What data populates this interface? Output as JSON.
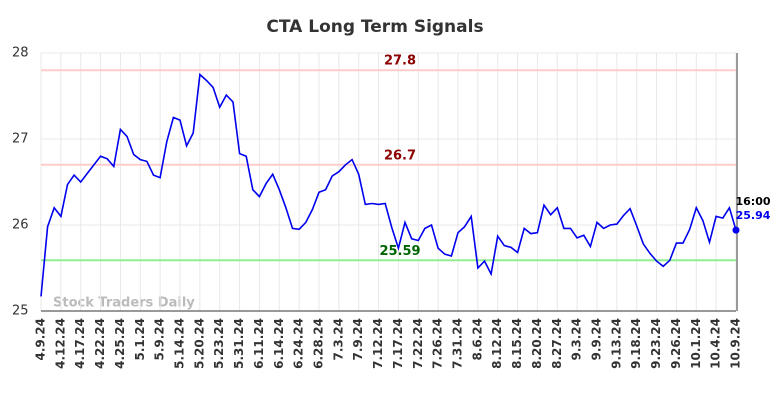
{
  "chart_data": {
    "type": "line",
    "title": "CTA Long Term Signals",
    "watermark": "Stock Traders Daily",
    "last_time": "16:00",
    "categories": [
      "4.9.24",
      null,
      null,
      "4.12.24",
      null,
      null,
      "4.17.24",
      null,
      null,
      "4.22.24",
      null,
      null,
      "4.25.24",
      null,
      null,
      "5.1.24",
      null,
      null,
      "5.9.24",
      null,
      null,
      "5.14.24",
      null,
      null,
      "5.20.24",
      null,
      null,
      "5.23.24",
      null,
      null,
      "5.31.24",
      null,
      null,
      "6.11.24",
      null,
      null,
      "6.14.24",
      null,
      null,
      "6.24.24",
      null,
      null,
      "6.28.24",
      null,
      null,
      "7.3.24",
      null,
      null,
      "7.9.24",
      null,
      null,
      "7.12.24",
      null,
      null,
      "7.17.24",
      null,
      null,
      "7.22.24",
      null,
      null,
      "7.26.24",
      null,
      null,
      "7.31.24",
      null,
      null,
      "8.6.24",
      null,
      null,
      "8.12.24",
      null,
      null,
      "8.15.24",
      null,
      null,
      "8.20.24",
      null,
      null,
      "8.27.24",
      null,
      null,
      "9.3.24",
      null,
      null,
      "9.9.24",
      null,
      null,
      "9.13.24",
      null,
      null,
      "9.18.24",
      null,
      null,
      "9.23.24",
      null,
      null,
      "9.26.24",
      null,
      null,
      "10.1.24",
      null,
      null,
      "10.4.24",
      null,
      null,
      "10.9.24"
    ],
    "series": [
      {
        "name": "CTA",
        "color": "#0000ee",
        "values": [
          25.17,
          25.98,
          26.2,
          26.1,
          26.47,
          26.58,
          26.5,
          26.6,
          26.7,
          26.8,
          26.77,
          26.68,
          27.11,
          27.03,
          26.82,
          26.76,
          26.74,
          26.58,
          26.55,
          26.97,
          27.25,
          27.22,
          26.92,
          27.07,
          27.75,
          27.68,
          27.6,
          27.37,
          27.51,
          27.43,
          26.83,
          26.8,
          26.41,
          26.33,
          26.48,
          26.59,
          26.41,
          26.2,
          25.96,
          25.95,
          26.03,
          26.18,
          26.38,
          26.41,
          26.57,
          26.62,
          26.7,
          26.76,
          26.59,
          26.24,
          26.25,
          26.24,
          26.25,
          25.97,
          25.73,
          26.03,
          25.84,
          25.82,
          25.96,
          26.0,
          25.73,
          25.66,
          25.64,
          25.91,
          25.98,
          26.1,
          25.5,
          25.58,
          25.43,
          25.87,
          25.76,
          25.74,
          25.68,
          25.96,
          25.9,
          25.91,
          26.23,
          26.12,
          26.2,
          25.96,
          25.96,
          25.85,
          25.88,
          25.75,
          26.03,
          25.96,
          26.0,
          26.01,
          26.11,
          26.19,
          25.99,
          25.78,
          25.67,
          25.58,
          25.52,
          25.59,
          25.79,
          25.79,
          25.95,
          26.2,
          26.05,
          25.8,
          26.1,
          26.08,
          26.2,
          25.94
        ]
      }
    ],
    "reference_lines": [
      {
        "value": 27.8,
        "color": "#ffcccc",
        "label_color": "#8b0000"
      },
      {
        "value": 26.7,
        "color": "#ffcccc",
        "label_color": "#8b0000"
      },
      {
        "value": 25.59,
        "color": "#90ee90",
        "label_color": "#006400"
      }
    ],
    "ylim": [
      25,
      28
    ],
    "yticks": [
      25,
      26,
      27,
      28
    ],
    "grid": true
  }
}
